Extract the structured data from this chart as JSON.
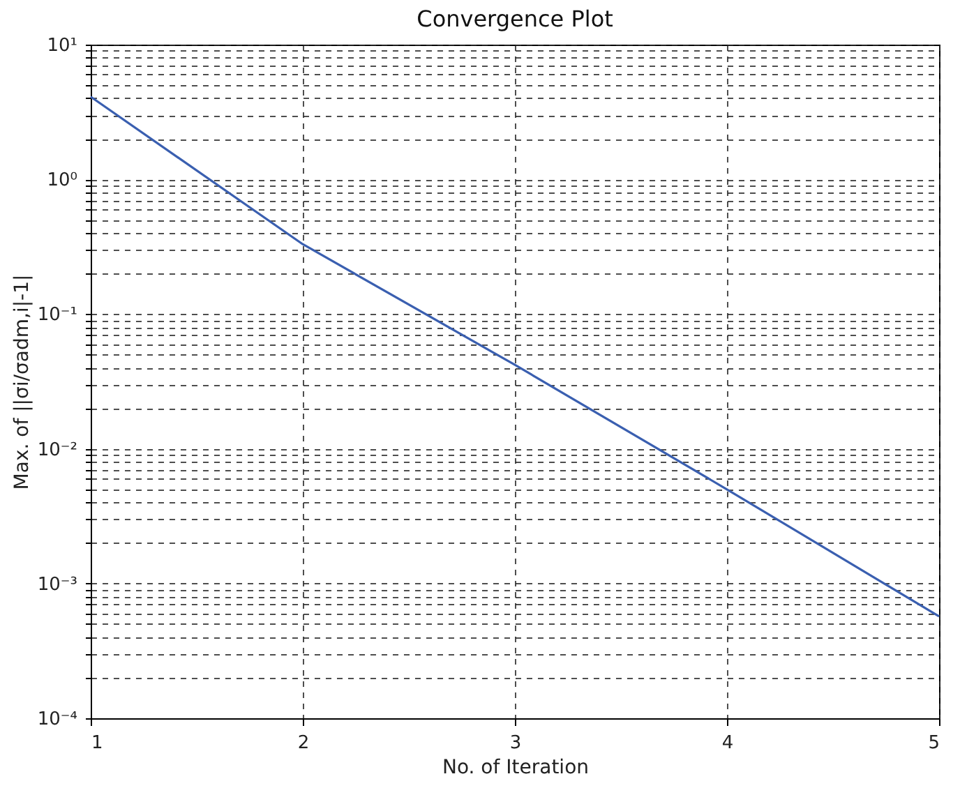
{
  "chart_data": {
    "type": "line",
    "title": "Convergence Plot",
    "xlabel": "No. of Iteration",
    "ylabel": "Max. of ||σi/σadm,i|-1|",
    "x": [
      1,
      2,
      3,
      4,
      5
    ],
    "series": [
      {
        "color": "#3a5fb0",
        "values": [
          4.1,
          0.33,
          0.042,
          0.005,
          0.00057
        ]
      }
    ],
    "log": "y",
    "xlim": [
      1,
      5
    ],
    "xticks": [
      1,
      2,
      3,
      4,
      5
    ],
    "ylim": [
      0.0001,
      10
    ],
    "yticks": [
      {
        "value": 0.0001,
        "label": "10⁻⁴"
      },
      {
        "value": 0.0002,
        "label": null
      },
      {
        "value": 0.0003,
        "label": null
      },
      {
        "value": 0.0004,
        "label": null
      },
      {
        "value": 0.0005,
        "label": null
      },
      {
        "value": 0.0006,
        "label": null
      },
      {
        "value": 0.0007,
        "label": null
      },
      {
        "value": 0.0008,
        "label": null
      },
      {
        "value": 0.0009,
        "label": null
      },
      {
        "value": 0.001,
        "label": "10⁻³"
      },
      {
        "value": 0.002,
        "label": null
      },
      {
        "value": 0.003,
        "label": null
      },
      {
        "value": 0.004,
        "label": null
      },
      {
        "value": 0.005,
        "label": null
      },
      {
        "value": 0.006,
        "label": null
      },
      {
        "value": 0.007,
        "label": null
      },
      {
        "value": 0.008,
        "label": null
      },
      {
        "value": 0.009,
        "label": null
      },
      {
        "value": 0.01,
        "label": "10⁻²"
      },
      {
        "value": 0.02,
        "label": null
      },
      {
        "value": 0.03,
        "label": null
      },
      {
        "value": 0.04,
        "label": null
      },
      {
        "value": 0.05,
        "label": null
      },
      {
        "value": 0.06,
        "label": null
      },
      {
        "value": 0.07,
        "label": null
      },
      {
        "value": 0.08,
        "label": null
      },
      {
        "value": 0.09,
        "label": null
      },
      {
        "value": 0.1,
        "label": "10⁻¹"
      },
      {
        "value": 0.2,
        "label": null
      },
      {
        "value": 0.3,
        "label": null
      },
      {
        "value": 0.4,
        "label": null
      },
      {
        "value": 0.5,
        "label": null
      },
      {
        "value": 0.6,
        "label": null
      },
      {
        "value": 0.7,
        "label": null
      },
      {
        "value": 0.8,
        "label": null
      },
      {
        "value": 0.9,
        "label": null
      },
      {
        "value": 1,
        "label": "10⁰"
      },
      {
        "value": 2,
        "label": null
      },
      {
        "value": 3,
        "label": null
      },
      {
        "value": 4,
        "label": null
      },
      {
        "value": 5,
        "label": null
      },
      {
        "value": 6,
        "label": null
      },
      {
        "value": 7,
        "label": null
      },
      {
        "value": 8,
        "label": null
      },
      {
        "value": 9,
        "label": null
      },
      {
        "value": 10,
        "label": "10¹"
      }
    ],
    "grid": true,
    "marker": "none",
    "line_style": "solid"
  }
}
